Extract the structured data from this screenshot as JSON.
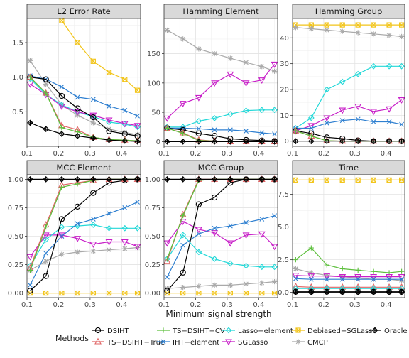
{
  "figure": {
    "xlabel": "Minimum signal strength",
    "legend_title": "Methods"
  },
  "legend": [
    {
      "name": "DSIHT",
      "color": "#000000",
      "marker": "circle"
    },
    {
      "name": "TS−DSIHT−True",
      "color": "#e06666",
      "marker": "triangle"
    },
    {
      "name": "TS−DSIHT−CV",
      "color": "#5cbf3c",
      "marker": "plus"
    },
    {
      "name": "IHT−element",
      "color": "#2e7fd0",
      "marker": "x"
    },
    {
      "name": "Lasso−element",
      "color": "#23d8d8",
      "marker": "diamond"
    },
    {
      "name": "SGLasso",
      "color": "#c81fc8",
      "marker": "triangle-down"
    },
    {
      "name": "Debiased−SGLasso",
      "color": "#f2c418",
      "marker": "square-x"
    },
    {
      "name": "CMCP",
      "color": "#a9a9a9",
      "marker": "asterisk"
    },
    {
      "name": "Oracle",
      "color": "#000000",
      "marker": "diamond-plus"
    }
  ],
  "chart_data": [
    {
      "type": "line",
      "title": "L2 Error Rate",
      "x": [
        0.11,
        0.16,
        0.21,
        0.26,
        0.31,
        0.36,
        0.41,
        0.45
      ],
      "xlim": [
        0.1,
        0.46
      ],
      "xticks": [
        0.1,
        0.2,
        0.3,
        0.4
      ],
      "xtick_labels": [
        "0.1",
        "0.2",
        "0.3",
        "0.4"
      ],
      "ylim": [
        0,
        1.85
      ],
      "yticks": [
        0.5,
        1.0,
        1.5
      ],
      "ytick_labels": [
        "0.5",
        "1.0",
        "1.5"
      ],
      "series": [
        {
          "name": "Debiased−SGLasso",
          "values": [
            null,
            null,
            1.82,
            1.5,
            1.23,
            1.07,
            0.97,
            0.81
          ]
        },
        {
          "name": "CMCP",
          "values": [
            1.24,
            0.9,
            0.6,
            0.45,
            0.34,
            0.25,
            0.2,
            0.17
          ]
        },
        {
          "name": "IHT−element",
          "values": [
            1.02,
            0.97,
            0.86,
            0.71,
            0.68,
            0.58,
            0.52,
            0.44
          ]
        },
        {
          "name": "Lasso−element",
          "values": [
            0.98,
            0.75,
            0.6,
            0.5,
            0.43,
            0.35,
            0.32,
            0.28
          ]
        },
        {
          "name": "SGLasso",
          "values": [
            0.9,
            0.75,
            0.58,
            0.5,
            0.45,
            0.38,
            0.33,
            0.3
          ]
        },
        {
          "name": "DSIHT",
          "values": [
            1.0,
            0.97,
            0.73,
            0.55,
            0.42,
            0.22,
            0.18,
            0.15
          ]
        },
        {
          "name": "TS−DSIHT−True",
          "values": [
            1.0,
            0.77,
            0.3,
            0.24,
            0.13,
            0.1,
            0.09,
            0.08
          ]
        },
        {
          "name": "TS−DSIHT−CV",
          "values": [
            1.0,
            0.77,
            0.27,
            0.21,
            0.13,
            0.1,
            0.09,
            0.08
          ]
        },
        {
          "name": "Oracle",
          "values": [
            0.34,
            0.25,
            0.18,
            0.15,
            0.12,
            0.09,
            0.08,
            0.07
          ]
        }
      ]
    },
    {
      "type": "line",
      "title": "Hamming Element",
      "x": [
        0.11,
        0.16,
        0.21,
        0.26,
        0.31,
        0.36,
        0.41,
        0.45
      ],
      "xlim": [
        0.1,
        0.46
      ],
      "xticks": [
        0.1,
        0.2,
        0.3,
        0.4
      ],
      "xtick_labels": [
        "0.1",
        "0.2",
        "0.3",
        "0.4"
      ],
      "ylim": [
        -8,
        210
      ],
      "yticks": [
        0,
        50,
        100,
        150
      ],
      "ytick_labels": [
        "0",
        "50",
        "100",
        "150"
      ],
      "series": [
        {
          "name": "CMCP",
          "values": [
            190,
            175,
            158,
            150,
            142,
            135,
            128,
            120
          ]
        },
        {
          "name": "SGLasso",
          "values": [
            40,
            65,
            75,
            100,
            115,
            100,
            105,
            132
          ]
        },
        {
          "name": "Lasso−element",
          "values": [
            25,
            25,
            35,
            40,
            47,
            53,
            54,
            54
          ]
        },
        {
          "name": "IHT−element",
          "values": [
            23,
            23,
            22,
            20,
            20,
            18,
            15,
            13
          ]
        },
        {
          "name": "DSIHT",
          "values": [
            23,
            20,
            14,
            10,
            5,
            3,
            2,
            1
          ]
        },
        {
          "name": "TS−DSIHT−True",
          "values": [
            23,
            15,
            3,
            1,
            0,
            0,
            0,
            0
          ]
        },
        {
          "name": "TS−DSIHT−CV",
          "values": [
            23,
            14,
            2,
            1,
            0,
            0,
            0,
            0
          ]
        },
        {
          "name": "Oracle",
          "values": [
            0,
            0,
            0,
            0,
            0,
            0,
            0,
            0
          ]
        }
      ]
    },
    {
      "type": "line",
      "title": "Hamming Group",
      "x": [
        0.11,
        0.16,
        0.21,
        0.26,
        0.31,
        0.36,
        0.41,
        0.45
      ],
      "xlim": [
        0.1,
        0.46
      ],
      "xticks": [
        0.1,
        0.2,
        0.3,
        0.4
      ],
      "xtick_labels": [
        "0.1",
        "0.2",
        "0.3",
        "0.4"
      ],
      "ylim": [
        -2,
        47.5
      ],
      "yticks": [
        0,
        10,
        20,
        30,
        40
      ],
      "ytick_labels": [
        "0",
        "10",
        "20",
        "30",
        "40"
      ],
      "series": [
        {
          "name": "Debiased−SGLasso",
          "values": [
            45,
            45,
            45,
            45,
            45,
            45,
            45,
            45
          ]
        },
        {
          "name": "CMCP",
          "values": [
            44,
            43.5,
            43,
            42.5,
            42,
            41.5,
            41,
            40.5
          ]
        },
        {
          "name": "Lasso−element",
          "values": [
            5,
            9,
            20,
            23,
            26,
            29,
            29,
            29
          ]
        },
        {
          "name": "SGLasso",
          "values": [
            4,
            6,
            9,
            12,
            13.5,
            11.5,
            12.5,
            16
          ]
        },
        {
          "name": "IHT−element",
          "values": [
            5,
            5,
            7,
            8,
            8.5,
            7.5,
            7.5,
            6.5
          ]
        },
        {
          "name": "DSIHT",
          "values": [
            4,
            3,
            1.5,
            1,
            0.3,
            0,
            0,
            0
          ]
        },
        {
          "name": "TS−DSIHT−True",
          "values": [
            4,
            2,
            0.2,
            0,
            0,
            0,
            0,
            0
          ]
        },
        {
          "name": "TS−DSIHT−CV",
          "values": [
            4,
            2,
            0.2,
            0,
            0,
            0,
            0,
            0
          ]
        },
        {
          "name": "Oracle",
          "values": [
            0,
            0,
            0,
            0,
            0,
            0,
            0,
            0
          ]
        }
      ]
    },
    {
      "type": "line",
      "title": "MCC Element",
      "x": [
        0.11,
        0.16,
        0.21,
        0.26,
        0.31,
        0.36,
        0.41,
        0.45
      ],
      "xlim": [
        0.1,
        0.46
      ],
      "xticks": [
        0.1,
        0.2,
        0.3,
        0.4
      ],
      "xtick_labels": [
        "0.1",
        "0.2",
        "0.3",
        "0.4"
      ],
      "ylim": [
        -0.04,
        1.04
      ],
      "yticks": [
        0,
        0.25,
        0.5,
        0.75,
        1.0
      ],
      "ytick_labels": [
        "0.00",
        "0.25",
        "0.50",
        "0.75",
        "1.00"
      ],
      "series": [
        {
          "name": "Debiased−SGLasso",
          "values": [
            0,
            0,
            0,
            0,
            0,
            0,
            0,
            0
          ]
        },
        {
          "name": "CMCP",
          "values": [
            0.2,
            0.28,
            0.34,
            0.36,
            0.37,
            0.38,
            0.39,
            0.4
          ]
        },
        {
          "name": "SGLasso",
          "values": [
            0.32,
            0.51,
            0.51,
            0.48,
            0.43,
            0.45,
            0.45,
            0.41
          ]
        },
        {
          "name": "Lasso−element",
          "values": [
            0.24,
            0.47,
            0.58,
            0.59,
            0.6,
            0.57,
            0.57,
            0.57
          ]
        },
        {
          "name": "IHT−element",
          "values": [
            0.07,
            0.35,
            0.5,
            0.61,
            0.65,
            0.7,
            0.75,
            0.8
          ]
        },
        {
          "name": "DSIHT",
          "values": [
            0.02,
            0.15,
            0.65,
            0.76,
            0.88,
            0.97,
            0.99,
            1.0
          ]
        },
        {
          "name": "TS−DSIHT−True",
          "values": [
            0.22,
            0.6,
            0.95,
            0.97,
            0.99,
            1.0,
            1.0,
            1.0
          ]
        },
        {
          "name": "TS−DSIHT−CV",
          "values": [
            0.2,
            0.58,
            0.93,
            0.96,
            0.99,
            1.0,
            1.0,
            1.0
          ]
        },
        {
          "name": "Oracle",
          "values": [
            1,
            1,
            1,
            1,
            1,
            1,
            1,
            1
          ]
        }
      ]
    },
    {
      "type": "line",
      "title": "MCC Group",
      "x": [
        0.11,
        0.16,
        0.21,
        0.26,
        0.31,
        0.36,
        0.41,
        0.45
      ],
      "xlim": [
        0.1,
        0.46
      ],
      "xticks": [
        0.1,
        0.2,
        0.3,
        0.4
      ],
      "xtick_labels": [
        "0.1",
        "0.2",
        "0.3",
        "0.4"
      ],
      "ylim": [
        -0.04,
        1.04
      ],
      "yticks": [
        0,
        0.25,
        0.5,
        0.75,
        1.0
      ],
      "ytick_labels": [
        "0.00",
        "0.25",
        "0.50",
        "0.75",
        "1.00"
      ],
      "series": [
        {
          "name": "Debiased−SGLasso",
          "values": [
            0,
            0,
            0,
            0,
            0,
            0,
            0,
            0
          ]
        },
        {
          "name": "CMCP",
          "values": [
            0.04,
            0.05,
            0.06,
            0.07,
            0.07,
            0.08,
            0.09,
            0.1
          ]
        },
        {
          "name": "SGLasso",
          "values": [
            0.44,
            0.63,
            0.56,
            0.53,
            0.44,
            0.51,
            0.52,
            0.41
          ]
        },
        {
          "name": "Lasso−element",
          "values": [
            0.3,
            0.51,
            0.36,
            0.3,
            0.26,
            0.24,
            0.23,
            0.23
          ]
        },
        {
          "name": "IHT−element",
          "values": [
            0.14,
            0.42,
            0.52,
            0.57,
            0.59,
            0.62,
            0.65,
            0.68
          ]
        },
        {
          "name": "DSIHT",
          "values": [
            0.02,
            0.18,
            0.78,
            0.84,
            0.97,
            1.0,
            1.0,
            1.0
          ]
        },
        {
          "name": "TS−DSIHT−True",
          "values": [
            0.28,
            0.69,
            1.0,
            1.0,
            1.0,
            1.0,
            1.0,
            1.0
          ]
        },
        {
          "name": "TS−DSIHT−CV",
          "values": [
            0.3,
            0.68,
            0.99,
            1.0,
            1.0,
            1.0,
            1.0,
            1.0
          ]
        },
        {
          "name": "Oracle",
          "values": [
            1,
            1,
            1,
            1,
            1,
            1,
            1,
            1
          ]
        }
      ]
    },
    {
      "type": "line",
      "title": "Time",
      "x": [
        0.11,
        0.16,
        0.21,
        0.26,
        0.31,
        0.36,
        0.41,
        0.45
      ],
      "xlim": [
        0.1,
        0.46
      ],
      "xticks": [
        0.1,
        0.2,
        0.3,
        0.4
      ],
      "xtick_labels": [
        "0.1",
        "0.2",
        "0.3",
        "0.4"
      ],
      "ylim": [
        -0.4,
        9.0
      ],
      "yticks": [
        0,
        2.5,
        5.0,
        7.5
      ],
      "ytick_labels": [
        "0.0",
        "2.5",
        "5.0",
        "7.5"
      ],
      "series": [
        {
          "name": "Debiased−SGLasso",
          "values": [
            8.6,
            8.6,
            8.6,
            8.6,
            8.6,
            8.6,
            8.6,
            8.6
          ]
        },
        {
          "name": "TS−DSIHT−CV",
          "values": [
            2.5,
            3.4,
            2.1,
            1.8,
            1.7,
            1.6,
            1.5,
            1.6
          ]
        },
        {
          "name": "CMCP",
          "values": [
            1.8,
            1.5,
            1.3,
            1.2,
            1.1,
            1.0,
            1.0,
            0.9
          ]
        },
        {
          "name": "SGLasso",
          "values": [
            1.3,
            1.25,
            1.25,
            1.2,
            1.2,
            1.2,
            1.2,
            1.2
          ]
        },
        {
          "name": "IHT−element",
          "values": [
            1.05,
            1.0,
            1.0,
            1.0,
            1.0,
            1.0,
            1.0,
            1.0
          ]
        },
        {
          "name": "TS−DSIHT−True",
          "values": [
            0.45,
            0.4,
            0.4,
            0.4,
            0.4,
            0.4,
            0.4,
            0.4
          ]
        },
        {
          "name": "Lasso−element",
          "values": [
            0.3,
            0.3,
            0.3,
            0.3,
            0.3,
            0.3,
            0.3,
            0.3
          ]
        },
        {
          "name": "DSIHT",
          "values": [
            0.05,
            0.05,
            0.05,
            0.05,
            0.05,
            0.05,
            0.05,
            0.05
          ]
        },
        {
          "name": "Oracle",
          "values": [
            0.02,
            0.02,
            0.02,
            0.02,
            0.02,
            0.02,
            0.02,
            0.02
          ]
        }
      ]
    }
  ]
}
